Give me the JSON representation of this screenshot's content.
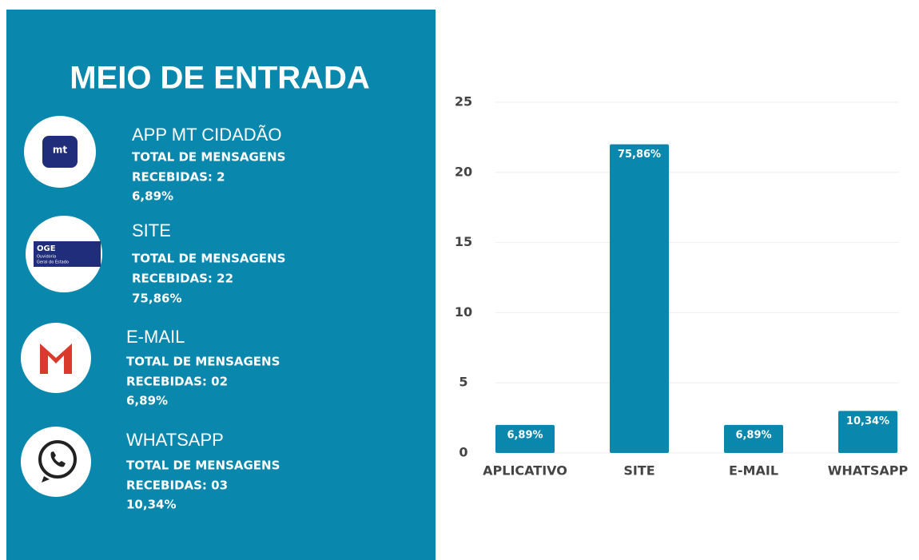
{
  "panel": {
    "title": "MEIO DE ENTRADA",
    "logos": {
      "app": "mt",
      "site": "OGE",
      "site_sub1": "Ouvidoria",
      "site_sub2": "Geral do Estado"
    },
    "items": [
      {
        "name": "APP MT CIDADÃO",
        "line1": "TOTAL DE MENSAGENS",
        "line2": "RECEBIDAS: 2",
        "percent": "6,89%"
      },
      {
        "name": "SITE",
        "line1": "TOTAL DE MENSAGENS",
        "line2": "RECEBIDAS: 22",
        "percent": "75,86%"
      },
      {
        "name": "E-MAIL",
        "line1": "TOTAL DE MENSAGENS",
        "line2": "RECEBIDAS: 02",
        "percent": "6,89%"
      },
      {
        "name": "WHATSAPP",
        "line1": "TOTAL DE MENSAGENS",
        "line2": "RECEBIDAS: 03",
        "percent": "10,34%"
      }
    ]
  },
  "chart_data": {
    "type": "bar",
    "categories": [
      "APLICATIVO",
      "SITE",
      "E-MAIL",
      "WHATSAPP"
    ],
    "values": [
      2,
      22,
      2,
      3
    ],
    "value_labels": [
      "6,89%",
      "75,86%",
      "6,89%",
      "10,34%"
    ],
    "color": "#0a87ad",
    "ylim": [
      0,
      25
    ],
    "yticks": [
      0,
      5,
      10,
      15,
      20,
      25
    ],
    "grid": true
  }
}
